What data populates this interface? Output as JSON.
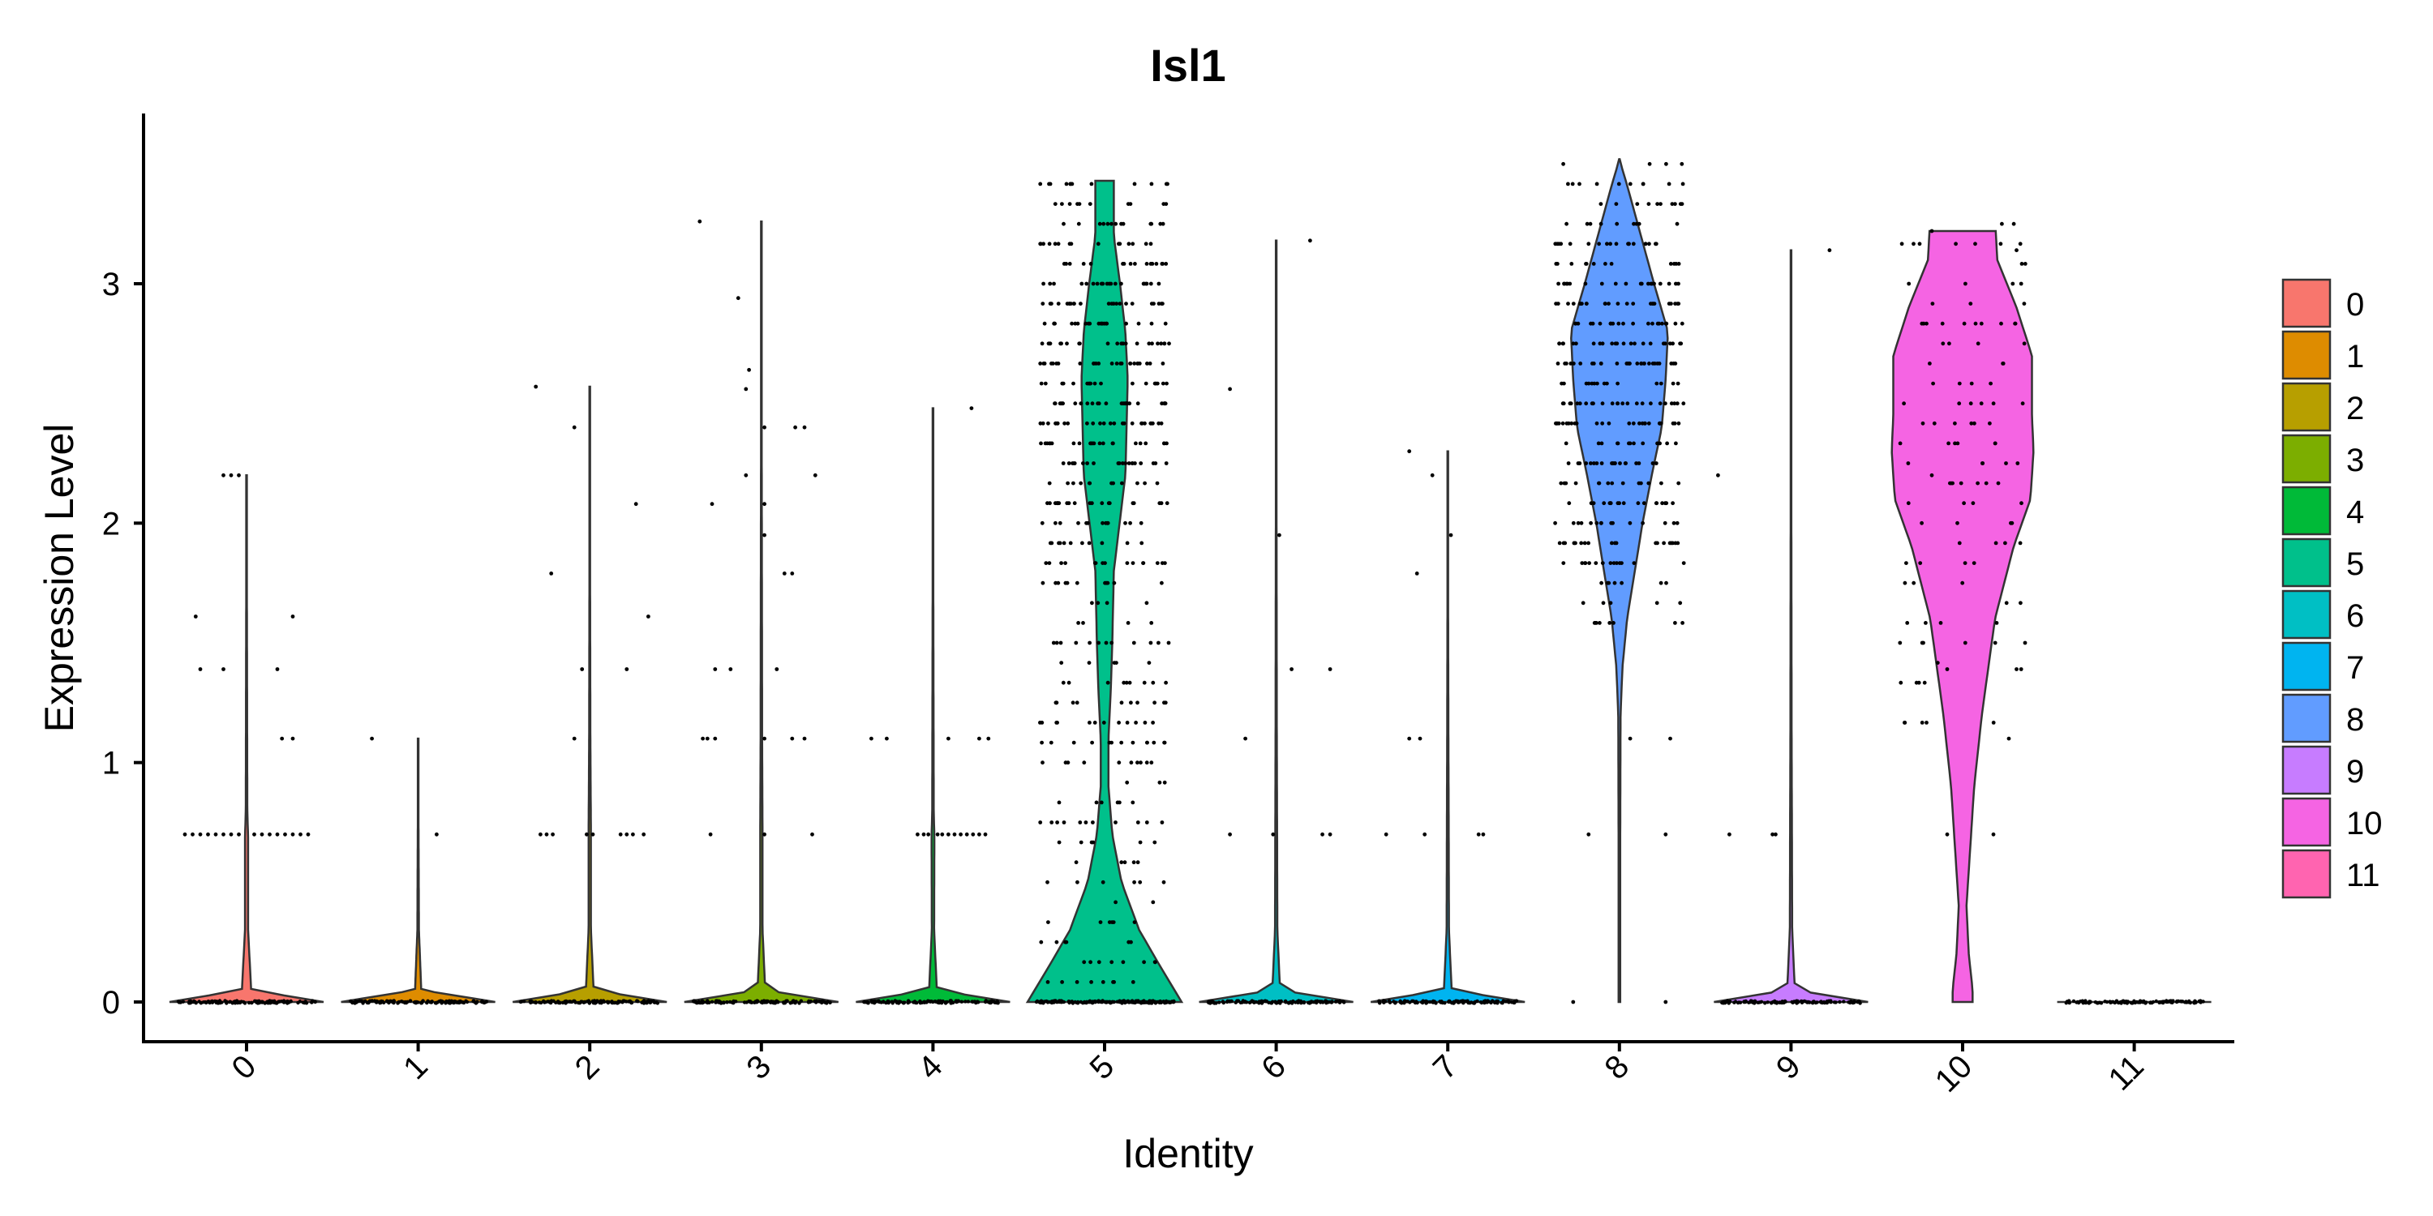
{
  "chart_data": {
    "type": "violin",
    "title": "Isl1",
    "xlabel": "Identity",
    "ylabel": "Expression Level",
    "categories": [
      "0",
      "1",
      "2",
      "3",
      "4",
      "5",
      "6",
      "7",
      "8",
      "9",
      "10",
      "11"
    ],
    "yticks": [
      0,
      1,
      2,
      3
    ],
    "ylim": [
      -0.17,
      3.72
    ],
    "grid": false,
    "legend_position": "right",
    "colors": [
      "#F8766D",
      "#DE8C00",
      "#B79F00",
      "#7CAE00",
      "#00BA38",
      "#00C08B",
      "#00BFC4",
      "#00B4F0",
      "#619CFF",
      "#C77CFF",
      "#F564E3",
      "#FF64B0"
    ],
    "groups": [
      {
        "name": "0",
        "min": 0,
        "max": 2.2,
        "profile": [
          [
            0,
            1
          ],
          [
            0.05,
            0.06
          ],
          [
            0.3,
            0.02
          ],
          [
            0.69,
            0.02
          ],
          [
            0.8,
            0.01
          ],
          [
            1.1,
            0.008
          ],
          [
            1.6,
            0.005
          ],
          [
            2.2,
            0
          ]
        ],
        "points": [
          [
            0.7,
            -0.4
          ],
          [
            0.7,
            -0.35
          ],
          [
            0.7,
            -0.3
          ],
          [
            0.7,
            -0.25
          ],
          [
            0.7,
            -0.2
          ],
          [
            0.7,
            -0.15
          ],
          [
            0.7,
            -0.1
          ],
          [
            0.7,
            -0.05
          ],
          [
            0.7,
            0.05
          ],
          [
            0.7,
            0.1
          ],
          [
            0.7,
            0.15
          ],
          [
            0.7,
            0.2
          ],
          [
            0.7,
            0.25
          ],
          [
            0.7,
            0.3
          ],
          [
            0.7,
            0.35
          ],
          [
            0.7,
            0.4
          ],
          [
            1.1,
            0.23
          ],
          [
            1.1,
            0.3
          ],
          [
            1.39,
            -0.3
          ],
          [
            1.39,
            -0.15
          ],
          [
            1.39,
            0.2
          ],
          [
            1.61,
            -0.33
          ],
          [
            1.61,
            0.3
          ],
          [
            2.2,
            -0.15
          ],
          [
            2.2,
            -0.1
          ],
          [
            2.2,
            -0.05
          ]
        ]
      },
      {
        "name": "1",
        "min": 0,
        "max": 1.1,
        "profile": [
          [
            0,
            1
          ],
          [
            0.05,
            0.04
          ],
          [
            0.3,
            0.01
          ],
          [
            1.1,
            0
          ]
        ],
        "points": [
          [
            1.1,
            -0.3
          ],
          [
            0.7,
            0.12
          ]
        ]
      },
      {
        "name": "2",
        "min": 0,
        "max": 2.57,
        "profile": [
          [
            0,
            1
          ],
          [
            0.05,
            0.05
          ],
          [
            0.3,
            0.015
          ],
          [
            0.7,
            0.015
          ],
          [
            1.1,
            0.008
          ],
          [
            2.57,
            0
          ]
        ],
        "points": [
          [
            0.7,
            -0.32
          ],
          [
            0.7,
            -0.28
          ],
          [
            0.7,
            -0.24
          ],
          [
            0.7,
            -0.02
          ],
          [
            0.7,
            0.02
          ],
          [
            0.7,
            0.2
          ],
          [
            0.7,
            0.24
          ],
          [
            0.7,
            0.28
          ],
          [
            0.7,
            0.35
          ],
          [
            1.1,
            -0.1
          ],
          [
            1.39,
            -0.05
          ],
          [
            1.39,
            0.24
          ],
          [
            1.61,
            0.38
          ],
          [
            1.79,
            -0.25
          ],
          [
            2.08,
            0.3
          ],
          [
            2.4,
            -0.1
          ],
          [
            2.57,
            -0.35
          ]
        ]
      },
      {
        "name": "3",
        "min": 0,
        "max": 3.26,
        "profile": [
          [
            0,
            1
          ],
          [
            0.05,
            0.05
          ],
          [
            0.3,
            0.015
          ],
          [
            0.7,
            0.015
          ],
          [
            1.1,
            0.01
          ],
          [
            3.26,
            0
          ]
        ],
        "points": [
          [
            0.7,
            -0.33
          ],
          [
            0.7,
            0.02
          ],
          [
            0.7,
            0.33
          ],
          [
            1.1,
            -0.38
          ],
          [
            1.1,
            -0.35
          ],
          [
            1.1,
            -0.3
          ],
          [
            1.1,
            0.2
          ],
          [
            1.1,
            0.28
          ],
          [
            1.1,
            0.02
          ],
          [
            1.39,
            -0.3
          ],
          [
            1.39,
            -0.2
          ],
          [
            1.39,
            0.1
          ],
          [
            1.79,
            0.15
          ],
          [
            1.79,
            0.2
          ],
          [
            1.95,
            0.02
          ],
          [
            2.08,
            -0.32
          ],
          [
            2.08,
            0.02
          ],
          [
            2.2,
            -0.1
          ],
          [
            2.2,
            0.35
          ],
          [
            2.4,
            0.02
          ],
          [
            2.4,
            0.22
          ],
          [
            2.4,
            0.28
          ],
          [
            2.56,
            -0.1
          ],
          [
            2.64,
            -0.08
          ],
          [
            2.94,
            -0.15
          ],
          [
            3.26,
            -0.4
          ]
        ]
      },
      {
        "name": "4",
        "min": 0,
        "max": 2.48,
        "profile": [
          [
            0,
            1
          ],
          [
            0.05,
            0.05
          ],
          [
            0.3,
            0.015
          ],
          [
            0.69,
            0.018
          ],
          [
            0.8,
            0.01
          ],
          [
            1.1,
            0.008
          ],
          [
            2.48,
            0
          ]
        ],
        "points": [
          [
            0.7,
            -0.1
          ],
          [
            0.7,
            -0.06
          ],
          [
            0.7,
            -0.03
          ],
          [
            0.7,
            0.03
          ],
          [
            0.7,
            0.06
          ],
          [
            0.7,
            0.1
          ],
          [
            0.7,
            0.14
          ],
          [
            0.7,
            0.18
          ],
          [
            0.7,
            0.22
          ],
          [
            0.7,
            0.26
          ],
          [
            0.7,
            0.3
          ],
          [
            0.7,
            0.34
          ],
          [
            1.1,
            -0.4
          ],
          [
            1.1,
            -0.3
          ],
          [
            1.1,
            0.1
          ],
          [
            1.1,
            0.3
          ],
          [
            1.1,
            0.36
          ],
          [
            2.48,
            0.25
          ]
        ]
      },
      {
        "name": "5",
        "min": 0,
        "max": 3.43,
        "profile": [
          [
            0,
            1
          ],
          [
            0.15,
            0.72
          ],
          [
            0.3,
            0.45
          ],
          [
            0.5,
            0.22
          ],
          [
            0.7,
            0.1
          ],
          [
            0.9,
            0.05
          ],
          [
            1.1,
            0.05
          ],
          [
            1.3,
            0.08
          ],
          [
            1.5,
            0.1
          ],
          [
            1.8,
            0.12
          ],
          [
            2.2,
            0.27
          ],
          [
            2.6,
            0.3
          ],
          [
            2.8,
            0.27
          ],
          [
            3.0,
            0.2
          ],
          [
            3.2,
            0.12
          ],
          [
            3.43,
            0.12
          ]
        ],
        "points": []
      },
      {
        "name": "6",
        "min": 0,
        "max": 3.18,
        "profile": [
          [
            0,
            1
          ],
          [
            0.05,
            0.05
          ],
          [
            0.3,
            0.015
          ],
          [
            0.7,
            0.012
          ],
          [
            1.1,
            0.008
          ],
          [
            3.18,
            0
          ]
        ],
        "points": [
          [
            0.7,
            -0.3
          ],
          [
            0.7,
            0.35
          ],
          [
            0.7,
            0.3
          ],
          [
            0.7,
            -0.02
          ],
          [
            1.1,
            -0.2
          ],
          [
            1.39,
            0.1
          ],
          [
            1.39,
            0.35
          ],
          [
            1.95,
            0.02
          ],
          [
            2.56,
            -0.3
          ],
          [
            3.18,
            0.22
          ]
        ]
      },
      {
        "name": "7",
        "min": 0,
        "max": 2.3,
        "profile": [
          [
            0,
            1
          ],
          [
            0.05,
            0.05
          ],
          [
            0.3,
            0.015
          ],
          [
            0.7,
            0.012
          ],
          [
            1.1,
            0.008
          ],
          [
            2.3,
            0
          ]
        ],
        "points": [
          [
            0.7,
            -0.4
          ],
          [
            0.7,
            -0.15
          ],
          [
            0.7,
            0.2
          ],
          [
            0.7,
            0.23
          ],
          [
            1.1,
            -0.25
          ],
          [
            1.1,
            -0.18
          ],
          [
            1.79,
            -0.2
          ],
          [
            1.95,
            0.02
          ],
          [
            2.2,
            -0.1
          ],
          [
            2.3,
            -0.25
          ]
        ]
      },
      {
        "name": "8",
        "min": 0,
        "max": 3.52,
        "profile": [
          [
            0,
            0.01
          ],
          [
            0.6,
            0.01
          ],
          [
            1.2,
            0.015
          ],
          [
            1.4,
            0.04
          ],
          [
            1.6,
            0.1
          ],
          [
            1.8,
            0.2
          ],
          [
            2.0,
            0.3
          ],
          [
            2.2,
            0.42
          ],
          [
            2.4,
            0.55
          ],
          [
            2.6,
            0.6
          ],
          [
            2.8,
            0.63
          ],
          [
            3.0,
            0.45
          ],
          [
            3.2,
            0.28
          ],
          [
            3.4,
            0.11
          ],
          [
            3.52,
            0
          ]
        ],
        "points": [
          [
            0,
            -0.3
          ],
          [
            0,
            0.3
          ],
          [
            0.7,
            -0.2
          ],
          [
            0.7,
            0.3
          ],
          [
            1.1,
            0.07
          ],
          [
            1.1,
            0.33
          ],
          [
            2.2,
            0.64
          ]
        ]
      },
      {
        "name": "9",
        "min": 0,
        "max": 3.14,
        "profile": [
          [
            0,
            1
          ],
          [
            0.05,
            0.05
          ],
          [
            0.3,
            0.015
          ],
          [
            0.7,
            0.012
          ],
          [
            1.1,
            0.008
          ],
          [
            3.14,
            0
          ]
        ],
        "points": [
          [
            0.7,
            -0.4
          ],
          [
            0.7,
            -0.12
          ],
          [
            0.7,
            -0.1
          ],
          [
            3.14,
            0.25
          ]
        ]
      },
      {
        "name": "10",
        "min": 0,
        "max": 3.22,
        "profile": [
          [
            0,
            0.13
          ],
          [
            0.05,
            0.13
          ],
          [
            0.2,
            0.08
          ],
          [
            0.4,
            0.05
          ],
          [
            0.6,
            0.09
          ],
          [
            0.9,
            0.15
          ],
          [
            1.2,
            0.25
          ],
          [
            1.6,
            0.42
          ],
          [
            1.9,
            0.66
          ],
          [
            2.1,
            0.88
          ],
          [
            2.3,
            0.92
          ],
          [
            2.45,
            0.9
          ],
          [
            2.7,
            0.9
          ],
          [
            2.9,
            0.7
          ],
          [
            3.1,
            0.45
          ],
          [
            3.22,
            0.43
          ]
        ],
        "points": [
          [
            0.7,
            -0.1
          ],
          [
            0.7,
            0.2
          ],
          [
            1.1,
            0.3
          ],
          [
            1.39,
            -0.1
          ],
          [
            1.39,
            0.35
          ],
          [
            1.39,
            0.38
          ],
          [
            2.2,
            -0.2
          ],
          [
            3.14,
            0.35
          ],
          [
            3.22,
            -0.2
          ]
        ]
      },
      {
        "name": "11",
        "min": 0,
        "max": 0,
        "profile": [
          [
            0,
            1
          ]
        ],
        "points": []
      }
    ]
  }
}
